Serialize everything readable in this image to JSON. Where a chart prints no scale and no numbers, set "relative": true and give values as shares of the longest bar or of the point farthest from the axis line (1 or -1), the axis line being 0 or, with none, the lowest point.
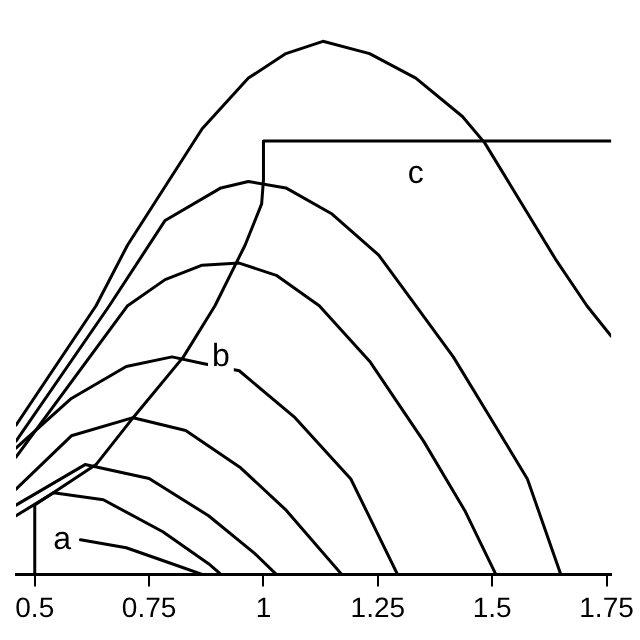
{
  "chart_data": {
    "type": "line",
    "relative": true,
    "xlim": [
      0.459,
      1.76
    ],
    "xticks": [
      0.5,
      0.75,
      1,
      1.25,
      1.5,
      1.75
    ],
    "grid": false,
    "legend": false,
    "marker": "none",
    "line_style": "solid",
    "tick_labels": "x",
    "annotations": [
      {
        "text": "a",
        "x": 0.56,
        "y": 0.065
      },
      {
        "text": "b",
        "x": 0.907,
        "y": 0.408
      },
      {
        "text": "c",
        "x": 1.333,
        "y": 0.75
      }
    ],
    "series": [
      {
        "color": "#000000",
        "x": [
          0.459,
          0.634,
          0.703,
          0.866,
          0.967,
          1.049,
          1.13,
          1.232,
          1.333,
          1.435,
          1.484,
          1.557,
          1.638,
          1.707,
          1.76
        ],
        "values": [
          0.28,
          0.504,
          0.618,
          0.836,
          0.931,
          0.977,
          1,
          0.977,
          0.931,
          0.859,
          0.809,
          0.706,
          0.592,
          0.504,
          0.447
        ]
      },
      {
        "color": "#000000",
        "x": [
          0.459,
          0.663,
          0.785,
          0.907,
          0.967,
          1.049,
          1.15,
          1.252,
          1.333,
          1.415,
          1.496,
          1.577,
          1.65
        ],
        "values": [
          0.25,
          0.504,
          0.664,
          0.725,
          0.737,
          0.725,
          0.676,
          0.599,
          0.504,
          0.408,
          0.294,
          0.179,
          0
        ]
      },
      {
        "color": "#000000",
        "x": [
          0.459,
          0.703,
          0.785,
          0.866,
          0.947,
          1.028,
          1.122,
          1.232,
          1.35,
          1.44,
          1.508
        ],
        "values": [
          0.22,
          0.504,
          0.553,
          0.58,
          0.584,
          0.561,
          0.504,
          0.4,
          0.25,
          0.12,
          0
        ]
      },
      {
        "color": "#000000",
        "x": [
          0.459,
          0.58,
          0.7,
          0.8,
          0.87,
          0.947,
          1.069,
          1.191,
          1.293
        ],
        "values": [
          0.237,
          0.33,
          0.39,
          0.408,
          0.395,
          0.382,
          0.294,
          0.179,
          0
        ]
      },
      {
        "color": "#000000",
        "x": [
          0.459,
          0.58,
          0.715,
          0.83,
          0.95,
          1.05,
          1.171
        ],
        "values": [
          0.16,
          0.26,
          0.294,
          0.27,
          0.2,
          0.12,
          0
        ]
      },
      {
        "color": "#000000",
        "x": [
          0.459,
          0.61,
          0.75,
          0.88,
          0.98,
          1.028
        ],
        "values": [
          0.13,
          0.206,
          0.18,
          0.11,
          0.04,
          0
        ]
      },
      {
        "color": "#000000",
        "x": [
          0.459,
          0.541,
          0.65,
          0.78,
          0.88,
          0.907
        ],
        "values": [
          0.11,
          0.153,
          0.14,
          0.08,
          0.02,
          0
        ]
      },
      {
        "color": "#000000",
        "x": [
          0.6,
          0.7,
          0.8,
          0.866
        ],
        "values": [
          0.065,
          0.05,
          0.02,
          0
        ]
      },
      {
        "color": "#000000",
        "x": [
          0.5,
          0.5,
          0.634,
          0.715,
          0.825,
          0.894,
          0.96,
          0.996,
          1,
          1,
          1.76
        ],
        "values": [
          0,
          0.13,
          0.206,
          0.294,
          0.408,
          0.504,
          0.618,
          0.695,
          0.74,
          0.813,
          0.813
        ]
      }
    ]
  }
}
